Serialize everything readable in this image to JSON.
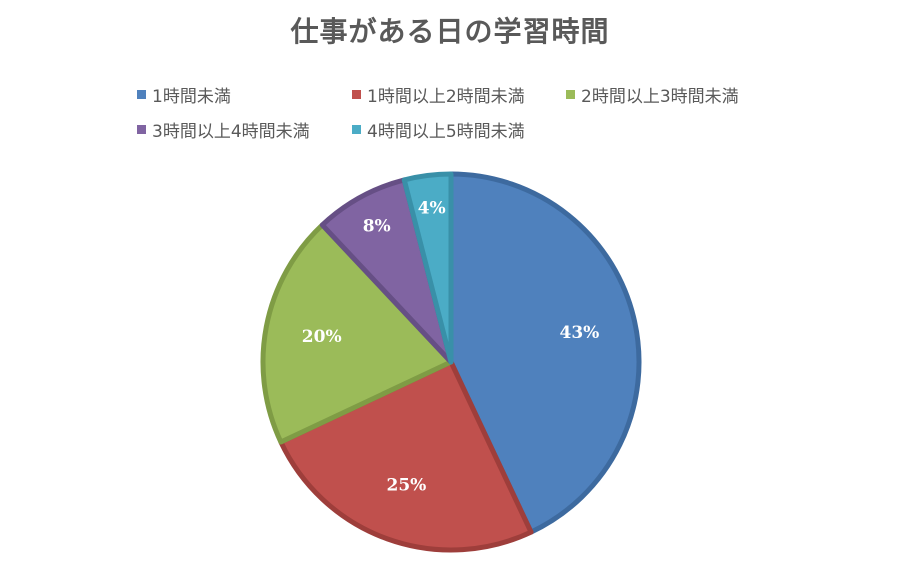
{
  "chart_data": {
    "type": "pie",
    "title": "仕事がある日の学習時間",
    "categories": [
      "1時間未満",
      "1時間以上2時間未満",
      "2時間以上3時間未満",
      "3時間以上4時間未満",
      "4時間以上5時間未満"
    ],
    "values": [
      43,
      25,
      20,
      8,
      4
    ],
    "data_labels": [
      "43%",
      "25%",
      "20%",
      "8%",
      "4%"
    ],
    "colors": [
      "#4f81bd",
      "#c0504d",
      "#9bbb59",
      "#8064a2",
      "#4bacc6"
    ],
    "edge_colors": [
      "#3d6a9f",
      "#9e3e3b",
      "#7f9c45",
      "#664f85",
      "#3990a8"
    ],
    "legend_position": "top"
  }
}
